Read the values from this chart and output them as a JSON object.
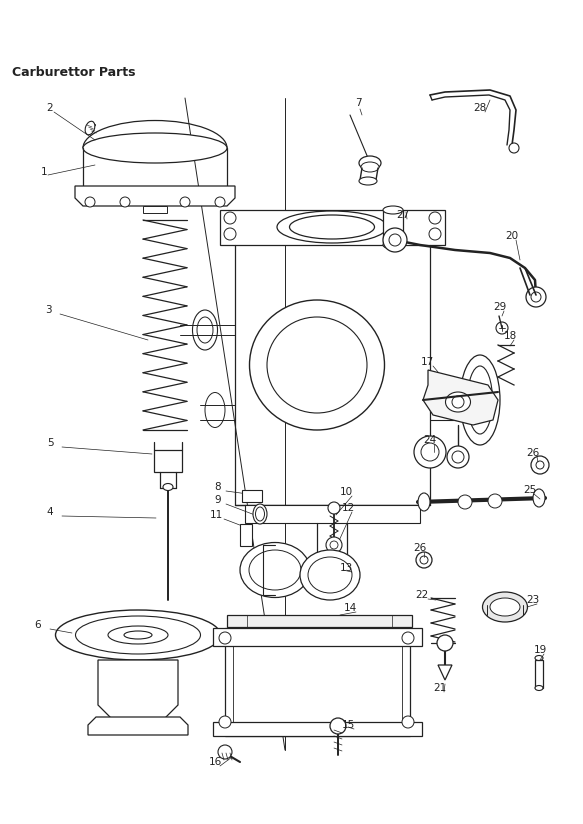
{
  "title": "Carburettor Parts",
  "bg_color": "#ffffff",
  "line_color": "#222222",
  "label_color": "#222222",
  "label_fontsize": 7.5,
  "lw": 0.9
}
